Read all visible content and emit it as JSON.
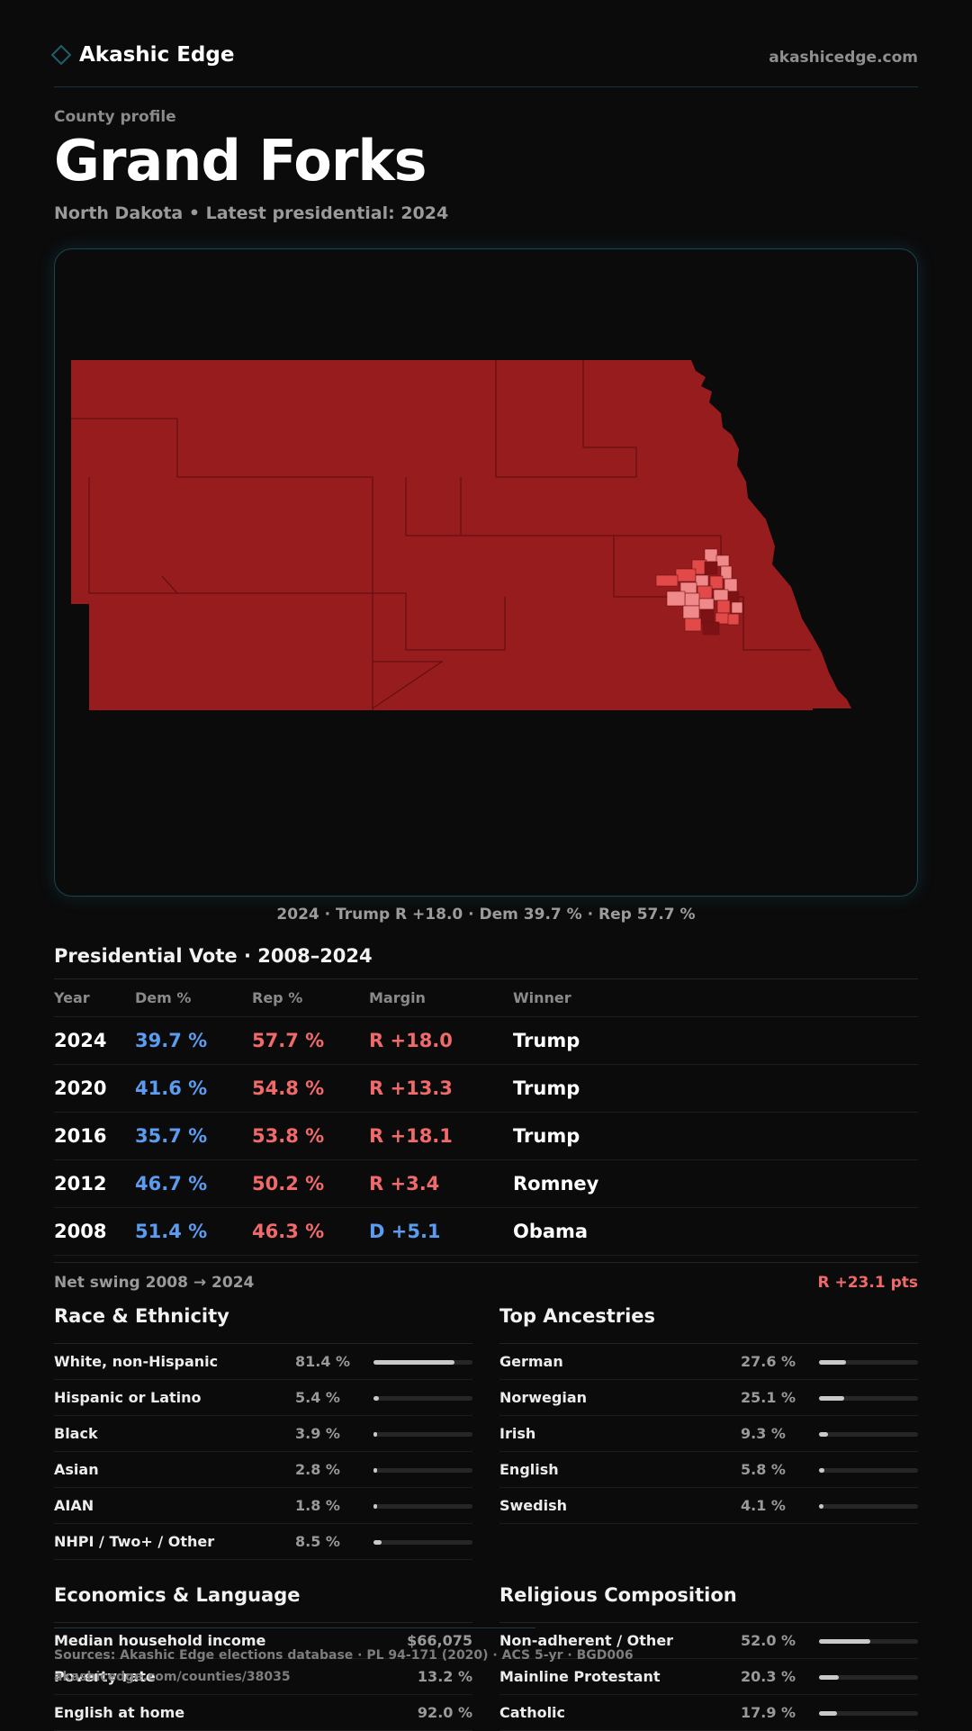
{
  "header": {
    "brand": "Akashic Edge",
    "site": "akashicedge.com"
  },
  "profile": {
    "kicker": "County profile",
    "title": "Grand Forks",
    "subtitle": "North Dakota • Latest presidential: 2024"
  },
  "map": {
    "caption": "2024 · Trump R +18.0 · Dem 39.7 % · Rep 57.7 %",
    "colors": {
      "base": "#971c1e",
      "light": "#f08a8a",
      "mid": "#e24a4a",
      "dark": "#7c1214"
    }
  },
  "vote": {
    "title": "Presidential Vote · 2008–2024",
    "headers": {
      "year": "Year",
      "dem": "Dem %",
      "rep": "Rep %",
      "margin": "Margin",
      "winner": "Winner"
    },
    "rows": [
      {
        "year": "2024",
        "dem": "39.7 %",
        "rep": "57.7 %",
        "margin": "R +18.0",
        "winner": "Trump",
        "party": "R"
      },
      {
        "year": "2020",
        "dem": "41.6 %",
        "rep": "54.8 %",
        "margin": "R +13.3",
        "winner": "Trump",
        "party": "R"
      },
      {
        "year": "2016",
        "dem": "35.7 %",
        "rep": "53.8 %",
        "margin": "R +18.1",
        "winner": "Trump",
        "party": "R"
      },
      {
        "year": "2012",
        "dem": "46.7 %",
        "rep": "50.2 %",
        "margin": "R +3.4",
        "winner": "Romney",
        "party": "R"
      },
      {
        "year": "2008",
        "dem": "51.4 %",
        "rep": "46.3 %",
        "margin": "D +5.1",
        "winner": "Obama",
        "party": "D"
      }
    ],
    "swing_label": "Net swing 2008 → 2024",
    "swing_value": "R +23.1 pts"
  },
  "race": {
    "title": "Race & Ethnicity",
    "rows": [
      {
        "label": "White, non-Hispanic",
        "value": "81.4 %",
        "fraction": 0.814
      },
      {
        "label": "Hispanic or Latino",
        "value": "5.4 %",
        "fraction": 0.054
      },
      {
        "label": "Black",
        "value": "3.9 %",
        "fraction": 0.039
      },
      {
        "label": "Asian",
        "value": "2.8 %",
        "fraction": 0.028
      },
      {
        "label": "AIAN",
        "value": "1.8 %",
        "fraction": 0.018
      },
      {
        "label": "NHPI / Two+ / Other",
        "value": "8.5 %",
        "fraction": 0.085
      }
    ]
  },
  "ancestry": {
    "title": "Top Ancestries",
    "rows": [
      {
        "label": "German",
        "value": "27.6 %",
        "fraction": 0.276
      },
      {
        "label": "Norwegian",
        "value": "25.1 %",
        "fraction": 0.251
      },
      {
        "label": "Irish",
        "value": "9.3 %",
        "fraction": 0.093
      },
      {
        "label": "English",
        "value": "5.8 %",
        "fraction": 0.058
      },
      {
        "label": "Swedish",
        "value": "4.1 %",
        "fraction": 0.041
      }
    ]
  },
  "economics": {
    "title": "Economics & Language",
    "rows": [
      {
        "label": "Median household income",
        "value": "$66,075"
      },
      {
        "label": "Poverty rate",
        "value": "13.2 %"
      },
      {
        "label": "English at home",
        "value": "92.0 %"
      }
    ]
  },
  "religion": {
    "title": "Religious Composition",
    "rows": [
      {
        "label": "Non-adherent / Other",
        "value": "52.0 %",
        "fraction": 0.52
      },
      {
        "label": "Mainline Protestant",
        "value": "20.3 %",
        "fraction": 0.203
      },
      {
        "label": "Catholic",
        "value": "17.9 %",
        "fraction": 0.179
      }
    ]
  },
  "footer": {
    "sources": "Sources: Akashic Edge elections database · PL 94-171 (2020) · ACS 5-yr · BGD006",
    "url": "akashicedge.com/counties/38035"
  }
}
